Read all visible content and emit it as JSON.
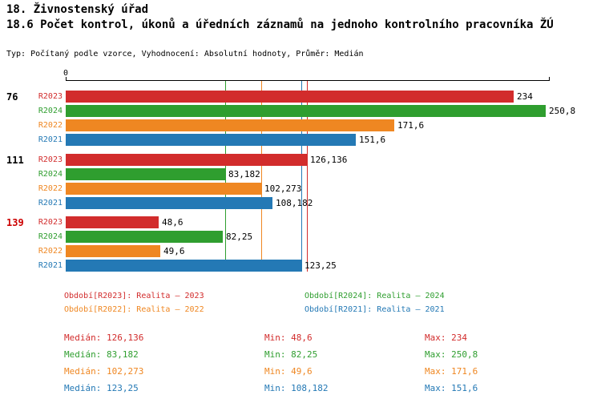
{
  "title": "18. Živnostenský úřad",
  "subtitle": "18.6 Počet kontrol, úkonů a úředních záznamů na jednoho kontrolního pracovníka ŽÚ",
  "meta": "Typ: Počítaný podle vzorce, Vyhodnocení: Absolutní hodnoty, Průměr: Medián",
  "chart_data": {
    "type": "bar",
    "orientation": "horizontal",
    "x_axis": {
      "min": 0,
      "max": 253,
      "tick_labels": [
        "0"
      ]
    },
    "grid": false,
    "median_lines": true,
    "series": [
      {
        "key": "R2023",
        "name": "Realita – 2023",
        "color": "#d22c2c",
        "median": 126.136,
        "min": 48.6,
        "max": 234
      },
      {
        "key": "R2024",
        "name": "Realita – 2024",
        "color": "#2f9e2f",
        "median": 83.182,
        "min": 82.25,
        "max": 250.8
      },
      {
        "key": "R2022",
        "name": "Realita – 2022",
        "color": "#ef8722",
        "median": 102.273,
        "min": 49.6,
        "max": 171.6
      },
      {
        "key": "R2021",
        "name": "Realita – 2021",
        "color": "#2479b5",
        "median": 123.25,
        "min": 108.182,
        "max": 151.6
      }
    ],
    "groups": [
      {
        "label": "76",
        "label_color": "#000000",
        "bars": [
          {
            "series": "R2023",
            "value": 234,
            "display": "234"
          },
          {
            "series": "R2024",
            "value": 250.8,
            "display": "250,8"
          },
          {
            "series": "R2022",
            "value": 171.6,
            "display": "171,6"
          },
          {
            "series": "R2021",
            "value": 151.6,
            "display": "151,6"
          }
        ]
      },
      {
        "label": "111",
        "label_color": "#000000",
        "bars": [
          {
            "series": "R2023",
            "value": 126.136,
            "display": "126,136"
          },
          {
            "series": "R2024",
            "value": 83.182,
            "display": "83,182"
          },
          {
            "series": "R2022",
            "value": 102.273,
            "display": "102,273"
          },
          {
            "series": "R2021",
            "value": 108.182,
            "display": "108,182"
          }
        ]
      },
      {
        "label": "139",
        "label_color": "#cc0000",
        "bars": [
          {
            "series": "R2023",
            "value": 48.6,
            "display": "48,6"
          },
          {
            "series": "R2024",
            "value": 82.25,
            "display": "82,25"
          },
          {
            "series": "R2022",
            "value": 49.6,
            "display": "49,6"
          },
          {
            "series": "R2021",
            "value": 123.25,
            "display": "123,25"
          }
        ]
      }
    ]
  },
  "legend": {
    "items": [
      {
        "key": "R2023",
        "label": "Období[R2023]: Realita – 2023",
        "column": 0,
        "row": 0
      },
      {
        "key": "R2024",
        "label": "Období[R2024]: Realita – 2024",
        "column": 1,
        "row": 0
      },
      {
        "key": "R2022",
        "label": "Období[R2022]: Realita – 2022",
        "column": 0,
        "row": 1
      },
      {
        "key": "R2021",
        "label": "Období[R2021]: Realita – 2021",
        "column": 1,
        "row": 1
      }
    ]
  },
  "stats": {
    "labels": {
      "median": "Medián:",
      "min": "Min:",
      "max": "Max:"
    },
    "rows": [
      {
        "key": "R2023",
        "median": "126,136",
        "min": "48,6",
        "max": "234"
      },
      {
        "key": "R2024",
        "median": "83,182",
        "min": "82,25",
        "max": "250,8"
      },
      {
        "key": "R2022",
        "median": "102,273",
        "min": "49,6",
        "max": "171,6"
      },
      {
        "key": "R2021",
        "median": "123,25",
        "min": "108,182",
        "max": "151,6"
      }
    ]
  }
}
